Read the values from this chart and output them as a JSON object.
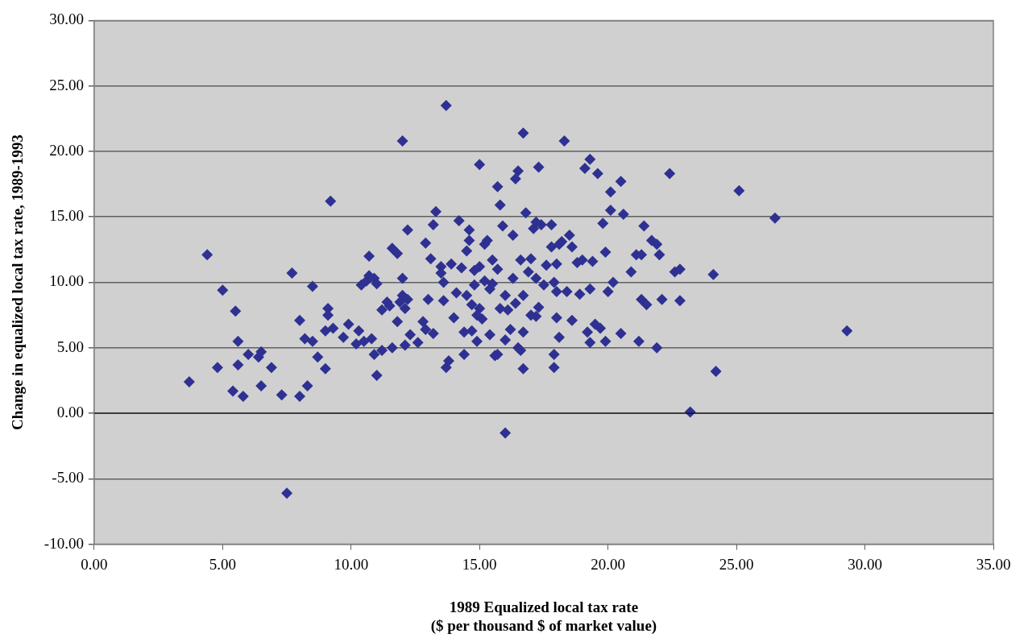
{
  "chart_data": {
    "type": "scatter",
    "xlabel": "1989 Equalized local tax rate\n($ per thousand $ of market value)",
    "ylabel": "Change in equalized local tax rate, 1989-1993",
    "xlim": [
      0,
      35
    ],
    "ylim": [
      -10,
      30
    ],
    "xticks": [
      {
        "value": 0,
        "label": "0.00"
      },
      {
        "value": 5,
        "label": "5.00"
      },
      {
        "value": 10,
        "label": "10.00"
      },
      {
        "value": 15,
        "label": "15.00"
      },
      {
        "value": 20,
        "label": "20.00"
      },
      {
        "value": 25,
        "label": "25.00"
      },
      {
        "value": 30,
        "label": "30.00"
      },
      {
        "value": 35,
        "label": "35.00"
      }
    ],
    "yticks": [
      {
        "value": -10,
        "label": "-10.00"
      },
      {
        "value": -5,
        "label": "-5.00"
      },
      {
        "value": 0,
        "label": "0.00"
      },
      {
        "value": 5,
        "label": "5.00"
      },
      {
        "value": 10,
        "label": "10.00"
      },
      {
        "value": 15,
        "label": "15.00"
      },
      {
        "value": 20,
        "label": "20.00"
      },
      {
        "value": 25,
        "label": "25.00"
      },
      {
        "value": 30,
        "label": "30.00"
      }
    ],
    "grid": "y",
    "legend": false,
    "marker": "diamond",
    "series": [
      {
        "color": "#2e3192",
        "x": [
          3.7,
          4.4,
          4.8,
          5.0,
          5.4,
          5.5,
          5.6,
          5.6,
          5.8,
          6.0,
          6.4,
          6.5,
          6.5,
          6.9,
          7.3,
          7.5,
          7.7,
          8.0,
          8.0,
          8.2,
          8.3,
          8.5,
          8.5,
          8.7,
          9.0,
          9.0,
          9.1,
          9.1,
          9.2,
          9.3,
          9.7,
          9.9,
          10.2,
          10.3,
          10.4,
          10.5,
          10.6,
          10.7,
          10.7,
          10.8,
          10.9,
          10.9,
          11.0,
          11.0,
          11.2,
          11.2,
          11.4,
          11.5,
          11.6,
          11.6,
          11.8,
          11.8,
          11.9,
          12.0,
          12.0,
          12.0,
          12.1,
          12.1,
          12.2,
          12.2,
          12.3,
          12.6,
          12.8,
          12.9,
          12.9,
          13.0,
          13.1,
          13.2,
          13.2,
          13.3,
          13.5,
          13.5,
          13.6,
          13.6,
          13.7,
          13.7,
          13.8,
          13.9,
          14.0,
          14.1,
          14.2,
          14.3,
          14.4,
          14.4,
          14.5,
          14.5,
          14.6,
          14.6,
          14.7,
          14.7,
          14.8,
          14.8,
          14.9,
          14.9,
          15.0,
          15.0,
          15.0,
          15.1,
          15.2,
          15.2,
          15.3,
          15.4,
          15.4,
          15.5,
          15.5,
          15.6,
          15.7,
          15.7,
          15.7,
          15.8,
          15.8,
          15.9,
          16.0,
          16.0,
          16.0,
          16.1,
          16.2,
          16.3,
          16.3,
          16.4,
          16.4,
          16.5,
          16.5,
          16.6,
          16.6,
          16.7,
          16.7,
          16.7,
          16.7,
          16.8,
          16.9,
          17.0,
          17.0,
          17.1,
          17.2,
          17.2,
          17.2,
          17.3,
          17.3,
          17.4,
          17.5,
          17.6,
          17.8,
          17.8,
          17.9,
          17.9,
          17.9,
          18.0,
          18.0,
          18.0,
          18.1,
          18.1,
          18.2,
          18.3,
          18.4,
          18.5,
          18.6,
          18.6,
          18.8,
          18.9,
          19.0,
          19.1,
          19.2,
          19.3,
          19.3,
          19.3,
          19.4,
          19.5,
          19.6,
          19.7,
          19.8,
          19.9,
          19.9,
          20.0,
          20.1,
          20.1,
          20.2,
          20.5,
          20.5,
          20.6,
          20.9,
          21.1,
          21.2,
          21.3,
          21.3,
          21.4,
          21.5,
          21.7,
          21.9,
          21.9,
          22.0,
          22.1,
          22.4,
          22.6,
          22.8,
          22.8,
          23.2,
          24.1,
          24.2,
          25.1,
          26.5,
          29.3
        ],
        "values": [
          2.4,
          12.1,
          3.5,
          9.4,
          1.7,
          7.8,
          5.5,
          3.7,
          1.3,
          4.5,
          4.3,
          4.7,
          2.1,
          3.5,
          1.4,
          -6.1,
          10.7,
          7.1,
          1.3,
          5.7,
          2.1,
          9.7,
          5.5,
          4.3,
          3.4,
          6.3,
          8.0,
          7.5,
          16.2,
          6.5,
          5.8,
          6.8,
          5.3,
          6.3,
          9.8,
          5.5,
          10.1,
          12.0,
          10.5,
          5.7,
          10.3,
          4.5,
          2.9,
          9.9,
          4.8,
          7.9,
          8.5,
          8.2,
          12.6,
          5.0,
          12.2,
          7.0,
          8.5,
          9.0,
          20.8,
          10.3,
          8.0,
          5.2,
          14.0,
          8.7,
          6.0,
          5.4,
          7.0,
          6.4,
          13.0,
          8.7,
          11.8,
          14.4,
          6.1,
          15.4,
          11.2,
          10.7,
          8.6,
          10.0,
          23.5,
          3.5,
          4.0,
          11.4,
          7.3,
          9.2,
          14.7,
          11.1,
          4.5,
          6.2,
          9.0,
          12.4,
          13.2,
          14.0,
          6.3,
          8.3,
          9.8,
          10.9,
          7.5,
          5.5,
          19.0,
          11.2,
          8.0,
          7.2,
          10.1,
          12.9,
          13.2,
          6.0,
          9.5,
          11.7,
          9.9,
          4.4,
          4.5,
          11.0,
          17.3,
          15.9,
          8.0,
          14.3,
          -1.5,
          9.0,
          5.6,
          7.9,
          6.4,
          13.6,
          10.3,
          17.9,
          8.4,
          18.5,
          5.0,
          11.7,
          4.8,
          21.4,
          3.4,
          6.2,
          9.0,
          15.3,
          10.8,
          11.8,
          7.5,
          14.1,
          14.6,
          7.4,
          10.3,
          8.1,
          18.8,
          14.4,
          9.8,
          11.3,
          12.7,
          14.4,
          10.0,
          3.5,
          4.5,
          7.3,
          9.3,
          11.4,
          5.8,
          12.9,
          13.1,
          20.8,
          9.3,
          13.6,
          7.1,
          12.7,
          11.5,
          9.1,
          11.7,
          18.7,
          6.2,
          19.4,
          9.5,
          5.4,
          11.6,
          6.8,
          18.3,
          6.5,
          14.5,
          12.3,
          5.5,
          9.3,
          16.9,
          15.5,
          10.0,
          17.7,
          6.1,
          15.2,
          10.8,
          12.1,
          5.5,
          8.7,
          12.1,
          14.3,
          8.3,
          13.2,
          5.0,
          12.9,
          12.1,
          8.7,
          18.3,
          10.8,
          8.6,
          11.0,
          0.1,
          10.6,
          3.2,
          17.0,
          14.9,
          6.3
        ]
      }
    ]
  }
}
